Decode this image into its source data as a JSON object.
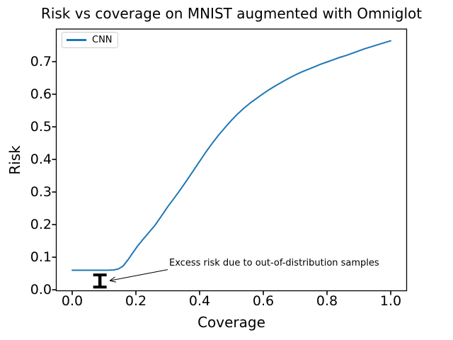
{
  "colors": {
    "line": "#1f77b4",
    "spine": "#000000",
    "text": "#000000",
    "error_marker": "#000000",
    "legend_border": "#cccccc",
    "background": "#ffffff"
  },
  "chart_data": {
    "type": "line",
    "title": "Risk vs coverage on MNIST augmented with Omniglot",
    "xlabel": "Coverage",
    "ylabel": "Risk",
    "xlim": [
      -0.05,
      1.05
    ],
    "ylim": [
      -0.003,
      0.8
    ],
    "grid": false,
    "x_tick_labels": [
      "0.0",
      "0.2",
      "0.4",
      "0.6",
      "0.8",
      "1.0"
    ],
    "x_tick_values": [
      0.0,
      0.2,
      0.4,
      0.6,
      0.8,
      1.0
    ],
    "y_tick_labels": [
      "0.0",
      "0.1",
      "0.2",
      "0.3",
      "0.4",
      "0.5",
      "0.6",
      "0.7"
    ],
    "y_tick_values": [
      0.0,
      0.1,
      0.2,
      0.3,
      0.4,
      0.5,
      0.6,
      0.7
    ],
    "legend": {
      "position": "upper-left",
      "entries": [
        {
          "label": "CNN",
          "color": "#1f77b4"
        }
      ]
    },
    "series": [
      {
        "name": "CNN",
        "color": "#1f77b4",
        "points": [
          [
            0.0,
            0.06
          ],
          [
            0.04,
            0.06
          ],
          [
            0.08,
            0.06
          ],
          [
            0.11,
            0.06
          ],
          [
            0.13,
            0.061
          ],
          [
            0.145,
            0.064
          ],
          [
            0.16,
            0.073
          ],
          [
            0.175,
            0.092
          ],
          [
            0.19,
            0.113
          ],
          [
            0.205,
            0.134
          ],
          [
            0.22,
            0.152
          ],
          [
            0.24,
            0.175
          ],
          [
            0.26,
            0.198
          ],
          [
            0.28,
            0.226
          ],
          [
            0.3,
            0.255
          ],
          [
            0.32,
            0.281
          ],
          [
            0.34,
            0.308
          ],
          [
            0.36,
            0.336
          ],
          [
            0.38,
            0.365
          ],
          [
            0.4,
            0.394
          ],
          [
            0.42,
            0.423
          ],
          [
            0.44,
            0.45
          ],
          [
            0.46,
            0.475
          ],
          [
            0.48,
            0.498
          ],
          [
            0.5,
            0.52
          ],
          [
            0.52,
            0.54
          ],
          [
            0.54,
            0.558
          ],
          [
            0.56,
            0.574
          ],
          [
            0.58,
            0.588
          ],
          [
            0.6,
            0.602
          ],
          [
            0.62,
            0.615
          ],
          [
            0.64,
            0.627
          ],
          [
            0.66,
            0.638
          ],
          [
            0.68,
            0.649
          ],
          [
            0.7,
            0.659
          ],
          [
            0.72,
            0.668
          ],
          [
            0.74,
            0.676
          ],
          [
            0.76,
            0.684
          ],
          [
            0.78,
            0.692
          ],
          [
            0.8,
            0.699
          ],
          [
            0.82,
            0.706
          ],
          [
            0.84,
            0.713
          ],
          [
            0.86,
            0.719
          ],
          [
            0.88,
            0.726
          ],
          [
            0.9,
            0.733
          ],
          [
            0.92,
            0.74
          ],
          [
            0.94,
            0.746
          ],
          [
            0.96,
            0.752
          ],
          [
            0.98,
            0.758
          ],
          [
            1.0,
            0.764
          ]
        ]
      }
    ],
    "error_marker": {
      "x": 0.087,
      "y_low": 0.004,
      "y_high": 0.05,
      "color": "#000000"
    },
    "annotation": {
      "text": "Excess risk due to out-of-distribution samples",
      "arrow_from": [
        0.3,
        0.062
      ],
      "arrow_to": [
        0.118,
        0.028
      ]
    }
  }
}
